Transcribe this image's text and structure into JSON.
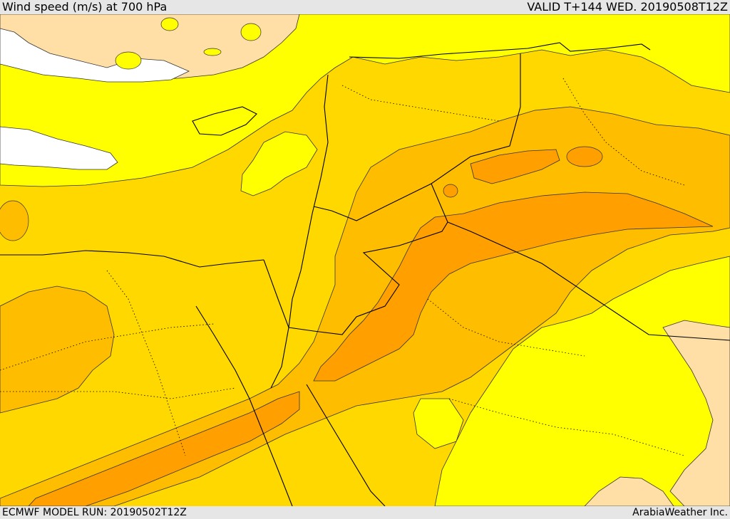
{
  "header": {
    "title": "Wind speed (m/s) at 700 hPa",
    "valid": "VALID T+144 WED. 20190508T12Z"
  },
  "footer": {
    "model_run": "ECMWF MODEL RUN: 20190502T12Z",
    "credit": "ArabiaWeather Inc."
  },
  "colors": {
    "white": "#ffffff",
    "peach": "#ffdfa6",
    "yellow": "#ffff00",
    "gold": "#ffd800",
    "amber": "#ffbd00",
    "orange": "#ff9f00",
    "dark_orange": "#ff8c00",
    "line": "#000000"
  }
}
